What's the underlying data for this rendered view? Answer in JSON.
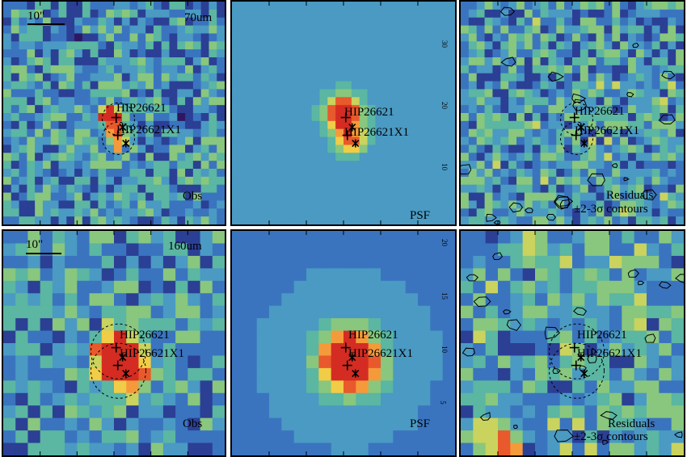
{
  "panels": [
    {
      "id": "p1",
      "kind": "obs",
      "band_label": "70um",
      "corner_label": "Obs",
      "scale_label": "10\"",
      "seed": 11,
      "res": 28,
      "source": "HIP26621",
      "companion": "HIP26621X1"
    },
    {
      "id": "p2",
      "kind": "psf",
      "band_label": "",
      "corner_label": "PSF",
      "scale_label": "",
      "seed": 22,
      "res": 28,
      "source": "HIP26621",
      "companion": "HIP26621X1"
    },
    {
      "id": "p3",
      "kind": "resid",
      "band_label": "",
      "corner_label": "Residuals",
      "corner_label2": "±2-3σ contours",
      "scale_label": "",
      "seed": 33,
      "res": 28,
      "source": "HIP26621",
      "companion": "HIP26621X1"
    },
    {
      "id": "p4",
      "kind": "obs",
      "band_label": "160um",
      "corner_label": "Obs",
      "scale_label": "10\"",
      "seed": 44,
      "res": 18,
      "source": "HIP26621",
      "companion": "HIP26621X1"
    },
    {
      "id": "p5",
      "kind": "psf",
      "band_label": "",
      "corner_label": "PSF",
      "scale_label": "",
      "seed": 55,
      "res": 18,
      "source": "HIP26621",
      "companion": "HIP26621X1"
    },
    {
      "id": "p6",
      "kind": "resid",
      "band_label": "",
      "corner_label": "Residuals",
      "corner_label2": "±2-3σ contours",
      "scale_label": "",
      "seed": 66,
      "res": 18,
      "source": "HIP26621",
      "companion": "HIP26621X1"
    }
  ],
  "colormap": [
    "#2e1760",
    "#2b3f95",
    "#3a74bf",
    "#4a9ac3",
    "#5bb6a2",
    "#88c77d",
    "#c9d35e",
    "#f1cc47",
    "#f59a3a",
    "#e8592c",
    "#d42c22"
  ],
  "axis_ticks_left_top": [
    "30",
    "20",
    "10"
  ],
  "axis_ticks_left_bottom": [
    "20",
    "15",
    "10",
    "5"
  ]
}
